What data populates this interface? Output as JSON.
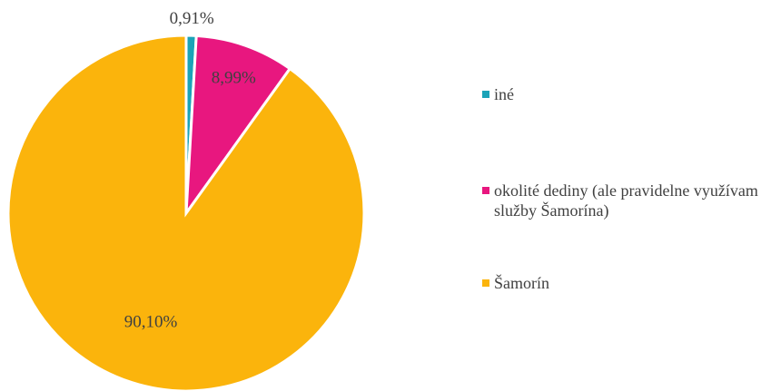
{
  "chart_data": {
    "type": "pie",
    "categories": [
      "iné",
      "okolité dediny (ale pravidelne využívam služby Šamorína)",
      "Šamorín"
    ],
    "values": [
      0.91,
      8.99,
      90.1
    ],
    "value_labels": [
      "0,91%",
      "8,99%",
      "90,10%"
    ],
    "colors": [
      "#1ba3b8",
      "#e8177f",
      "#fbb40c"
    ],
    "legend": "right"
  }
}
